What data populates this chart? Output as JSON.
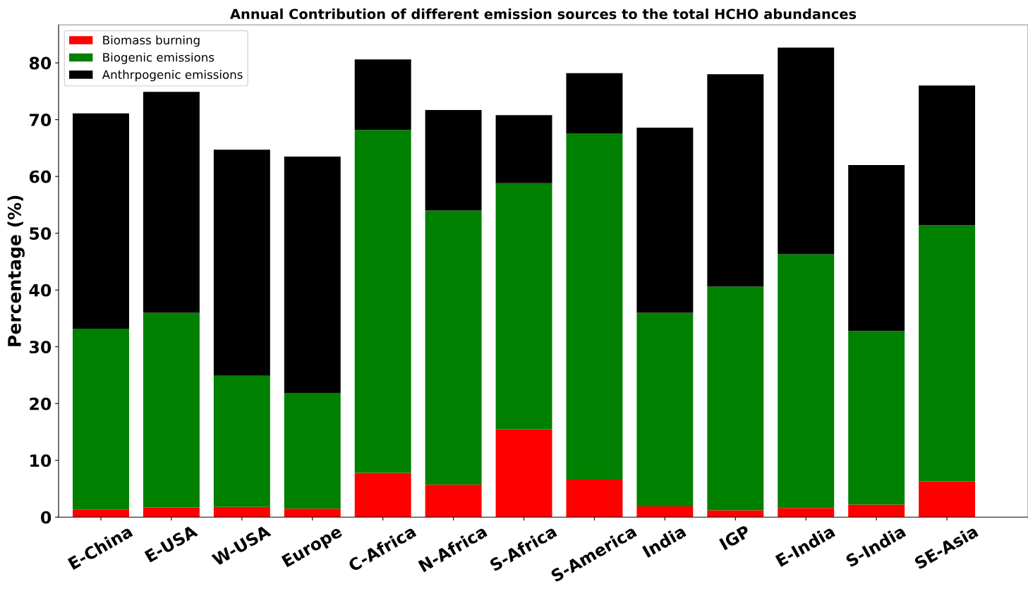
{
  "chart_data": {
    "type": "bar",
    "stacked": true,
    "title": "Annual Contribution of different emission sources to the total HCHO abundances",
    "ylabel": "Percentage (%)",
    "categories": [
      "E-China",
      "E-USA",
      "W-USA",
      "Europe",
      "C-Africa",
      "N-Africa",
      "S-Africa",
      "S-America",
      "India",
      "IGP",
      "E-India",
      "S-India",
      "SE-Asia"
    ],
    "series": [
      {
        "name": "Biomass burning",
        "color": "#ff0000",
        "values": [
          1.3,
          1.7,
          1.8,
          1.5,
          7.8,
          5.7,
          15.5,
          6.6,
          1.9,
          1.2,
          1.6,
          2.2,
          6.3
        ]
      },
      {
        "name": "Biogenic emissions",
        "color": "#008000",
        "values": [
          31.9,
          34.3,
          23.1,
          20.4,
          60.4,
          48.3,
          43.3,
          61.0,
          34.1,
          39.4,
          44.7,
          30.6,
          45.1
        ]
      },
      {
        "name": "Anthrpogenic emissions",
        "color": "#000000",
        "values": [
          37.9,
          38.9,
          39.8,
          41.6,
          12.4,
          17.7,
          12.0,
          10.6,
          32.6,
          37.4,
          36.4,
          29.2,
          24.6
        ]
      }
    ],
    "ylim": [
      0,
      86.7
    ],
    "yticks": [
      0,
      10,
      20,
      30,
      40,
      50,
      60,
      70,
      80
    ],
    "grid": false,
    "legend": "top left"
  }
}
